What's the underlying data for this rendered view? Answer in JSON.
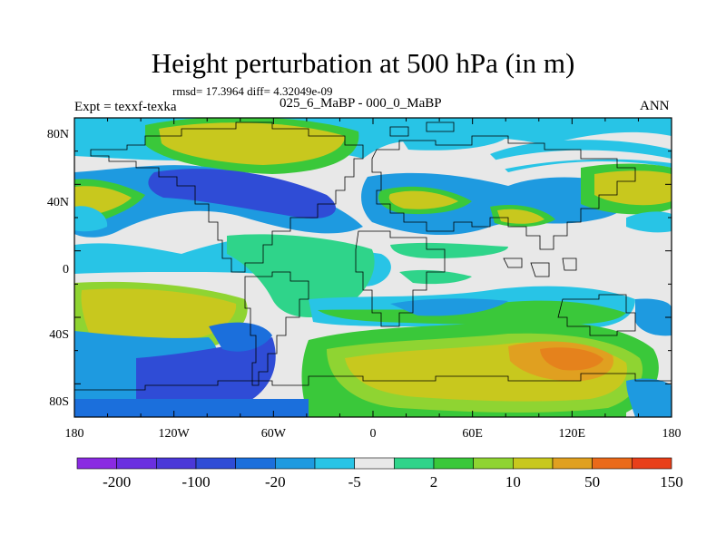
{
  "title": "Height perturbation at 500 hPa (in m)",
  "stats": "rmsd= 17.3964 diff= 4.32049e-09",
  "expt": "Expt = texxf-texka",
  "subtitle": "025_6_MaBP - 000_0_MaBP",
  "season": "ANN",
  "y_ticks": [
    "80N",
    "40N",
    "0",
    "40S",
    "80S"
  ],
  "x_ticks": [
    "180",
    "120W",
    "60W",
    "0",
    "60E",
    "120E",
    "180"
  ],
  "colorbar": {
    "colors": [
      "#8a2be2",
      "#6a2fe0",
      "#4b38d8",
      "#2f4cd6",
      "#1b6fdc",
      "#1e9ae0",
      "#28c4e6",
      "#e8e8e8",
      "#2fd48a",
      "#3ac83a",
      "#8fd432",
      "#c8c81e",
      "#e0a020",
      "#ea6a1a",
      "#e8401a"
    ],
    "labels": [
      "-200",
      "-100",
      "-20",
      "-5",
      "2",
      "10",
      "50",
      "150"
    ]
  }
}
